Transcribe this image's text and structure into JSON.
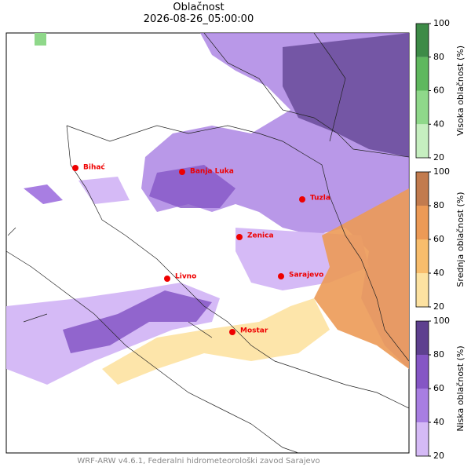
{
  "title": "Oblačnost",
  "subtitle": "2026-08-26_05:00:00",
  "cities": [
    "Bihać",
    "Banja Luka",
    "Tuzla",
    "Zenica",
    "Livno",
    "Sarajevo",
    "Mostar"
  ],
  "colorbars": [
    {
      "label": "Visoka oblačnost (%)",
      "ticks": [
        20,
        40,
        60,
        80,
        100
      ],
      "colors": [
        "#c6efc0",
        "#8fd88a",
        "#5fb85e",
        "#3d8b47"
      ]
    },
    {
      "label": "Srednja oblačnost (%)",
      "ticks": [
        20,
        40,
        60,
        80,
        100
      ],
      "colors": [
        "#fde2a1",
        "#f8bd6c",
        "#ec9a56",
        "#c27b4e"
      ]
    },
    {
      "label": "Niska oblačnost (%)",
      "ticks": [
        20,
        40,
        60,
        80,
        100
      ],
      "colors": [
        "#d5baf6",
        "#a87ee2",
        "#8556c5",
        "#5e408f"
      ]
    }
  ],
  "footer": "WRF-ARW v4.6.1, Federalni hidrometeorološki zavod Sarajevo"
}
